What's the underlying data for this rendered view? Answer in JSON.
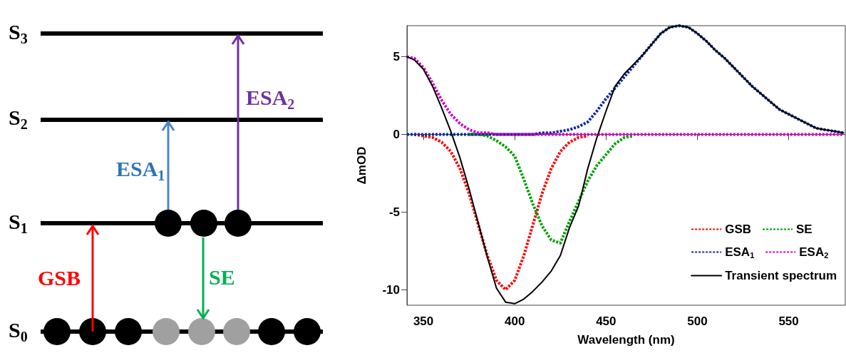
{
  "chart_data": [
    {
      "type": "other",
      "annotations": [
        "S$_{3}$",
        "S$_{2}$",
        "S$_{1}$",
        "S$_{0}$",
        "ESA$_{2}$",
        "ESA$_{1}$",
        "GSB",
        "SE"
      ]
    },
    {
      "type": "line",
      "xlabel": "Wavelength (nm)",
      "ylabel": "ΔmOD",
      "x": [
        341,
        345,
        350,
        355,
        360,
        365,
        370,
        375,
        380,
        385,
        390,
        395,
        400,
        405,
        410,
        415,
        420,
        425,
        430,
        435,
        440,
        445,
        450,
        455,
        460,
        465,
        470,
        475,
        480,
        485,
        490,
        495,
        500,
        505,
        510,
        515,
        520,
        525,
        530,
        535,
        540,
        545,
        550,
        555,
        560,
        565,
        570,
        575,
        580
      ],
      "series": [
        {
          "name": "GSB",
          "color": "#ff0000",
          "values": [
            null,
            0,
            -0.1,
            -0.2,
            -0.5,
            -1.1,
            -2.2,
            -3.8,
            -5.8,
            -7.8,
            -9.4,
            -10,
            -9.4,
            -7.8,
            -5.8,
            -3.8,
            -2.2,
            -1.1,
            -0.5,
            -0.2,
            -0.1,
            null,
            null,
            null,
            null,
            null,
            null,
            null,
            null,
            null,
            null,
            null,
            null,
            null,
            null,
            null,
            null,
            null,
            null,
            null,
            null,
            null,
            null,
            null,
            null,
            null,
            null,
            null,
            null
          ]
        },
        {
          "name": "SE",
          "color": "#00a000",
          "values": [
            null,
            null,
            null,
            null,
            null,
            null,
            null,
            0,
            0,
            -0.1,
            -0.4,
            -0.8,
            -1.4,
            -2.9,
            -4.5,
            -5.9,
            -6.8,
            -7,
            -5.6,
            -4.3,
            -3,
            -2,
            -1.3,
            -0.6,
            -0.2,
            -0.1,
            null,
            null,
            null,
            null,
            null,
            null,
            null,
            null,
            null,
            null,
            null,
            null,
            null,
            null,
            null,
            null,
            null,
            null,
            null,
            null,
            null,
            null,
            null
          ]
        },
        {
          "name": "ESA$_{1}$",
          "color": "#0a2aa0",
          "values": [
            0,
            0,
            0,
            0,
            0,
            0,
            0,
            0,
            0,
            0,
            0,
            0,
            0,
            0,
            0,
            0.1,
            0.1,
            0.2,
            0.3,
            0.5,
            0.8,
            1.5,
            2.3,
            3,
            3.7,
            4.4,
            5.1,
            5.8,
            6.5,
            6.9,
            7,
            6.9,
            6.5,
            6,
            5.4,
            4.9,
            4.3,
            3.7,
            3.1,
            2.6,
            2.1,
            1.6,
            1.3,
            1,
            0.7,
            0.4,
            0.3,
            0.2,
            0.1
          ]
        },
        {
          "name": "ESA$_{2}$",
          "color": "#d000c0",
          "values": [
            5,
            4.9,
            4.3,
            3.3,
            2.2,
            1.3,
            0.7,
            0.3,
            0.1,
            0.1,
            0,
            0,
            0,
            0,
            0,
            0,
            0,
            0,
            0,
            0,
            0,
            0,
            0,
            0,
            0,
            0,
            0,
            0,
            0,
            0,
            0,
            0,
            0,
            0,
            0,
            0,
            0,
            0,
            0,
            0,
            0,
            0,
            0,
            0,
            0,
            0,
            0,
            0,
            0
          ]
        },
        {
          "name": "Transient spectrum",
          "color": "#000000",
          "line_style": "solid",
          "values": [
            5,
            4.8,
            4.2,
            3.1,
            1.7,
            0.2,
            -1.5,
            -3.5,
            -5.7,
            -7.9,
            -9.9,
            -10.8,
            -10.9,
            -10.6,
            -10.1,
            -9.5,
            -8.8,
            -7.8,
            -6,
            -4.6,
            -2.2,
            -0.2,
            1.5,
            3.1,
            3.9,
            4.5,
            5.1,
            5.8,
            6.5,
            6.9,
            7,
            6.9,
            6.5,
            6,
            5.4,
            4.9,
            4.3,
            3.7,
            3.1,
            2.6,
            2.1,
            1.6,
            1.3,
            1,
            0.7,
            0.4,
            0.3,
            0.2,
            0.1
          ]
        }
      ],
      "xlim": [
        341,
        581
      ],
      "xticks": [
        350,
        400,
        450,
        500,
        550
      ],
      "ylim": [
        -11,
        7
      ],
      "yticks": [
        -10,
        -5,
        0,
        5
      ],
      "marker": "none",
      "line_style": "dotted",
      "legend": "bottom right"
    }
  ]
}
